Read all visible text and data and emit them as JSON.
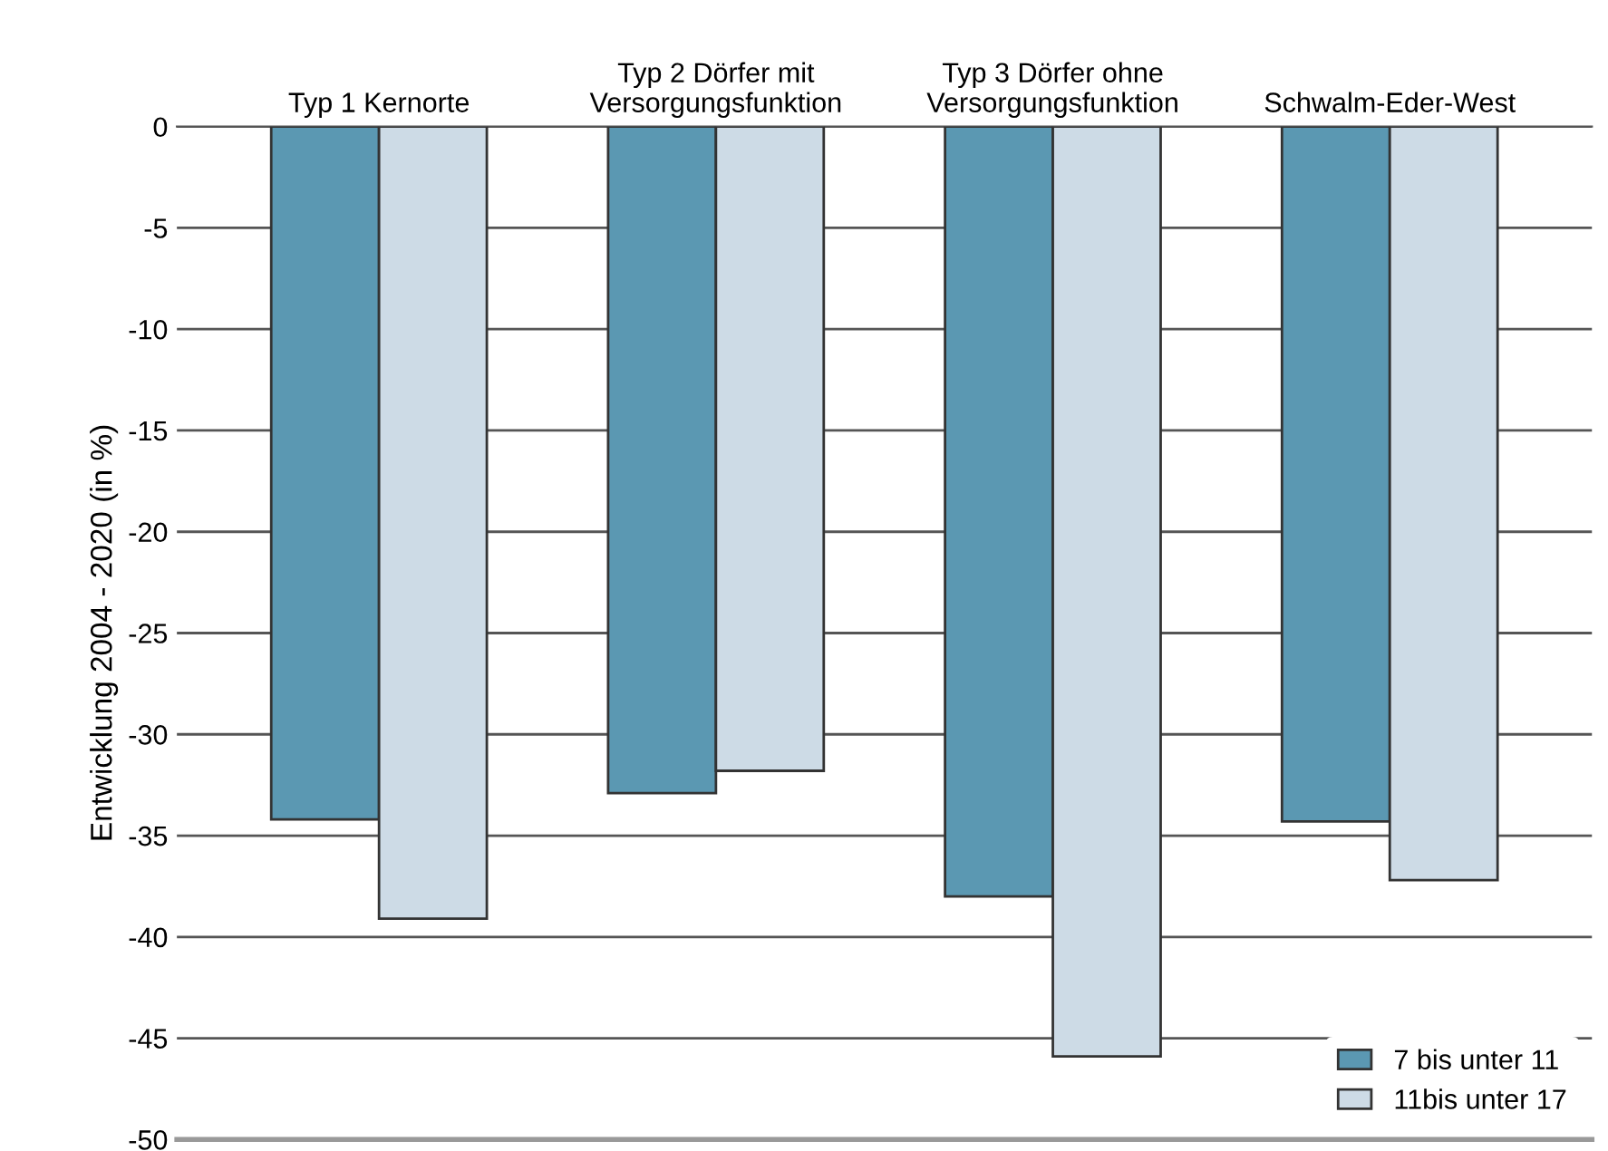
{
  "chart_data": {
    "type": "bar",
    "ylabel": "Entwicklung 2004 - 2020 (in %)",
    "categories": [
      "Typ 1 Kernorte",
      "Typ 2 Dörfer mit\nVersorgungsfunktion",
      "Typ 3 Dörfer ohne\nVersorgungsfunktion",
      "Schwalm-Eder-West"
    ],
    "series": [
      {
        "name": "7 bis unter 11",
        "color": "#5b98b2",
        "values": [
          -34.2,
          -32.9,
          -38.0,
          -34.3
        ]
      },
      {
        "name": "11bis unter 17",
        "color": "#cddbe6",
        "values": [
          -39.1,
          -31.8,
          -45.9,
          -37.2
        ]
      }
    ],
    "ylim": [
      -50,
      0
    ],
    "yticks": [
      0,
      -5,
      -10,
      -15,
      -20,
      -25,
      -30,
      -35,
      -40,
      -45,
      -50
    ],
    "grid": "y",
    "legend": "bottom right"
  }
}
